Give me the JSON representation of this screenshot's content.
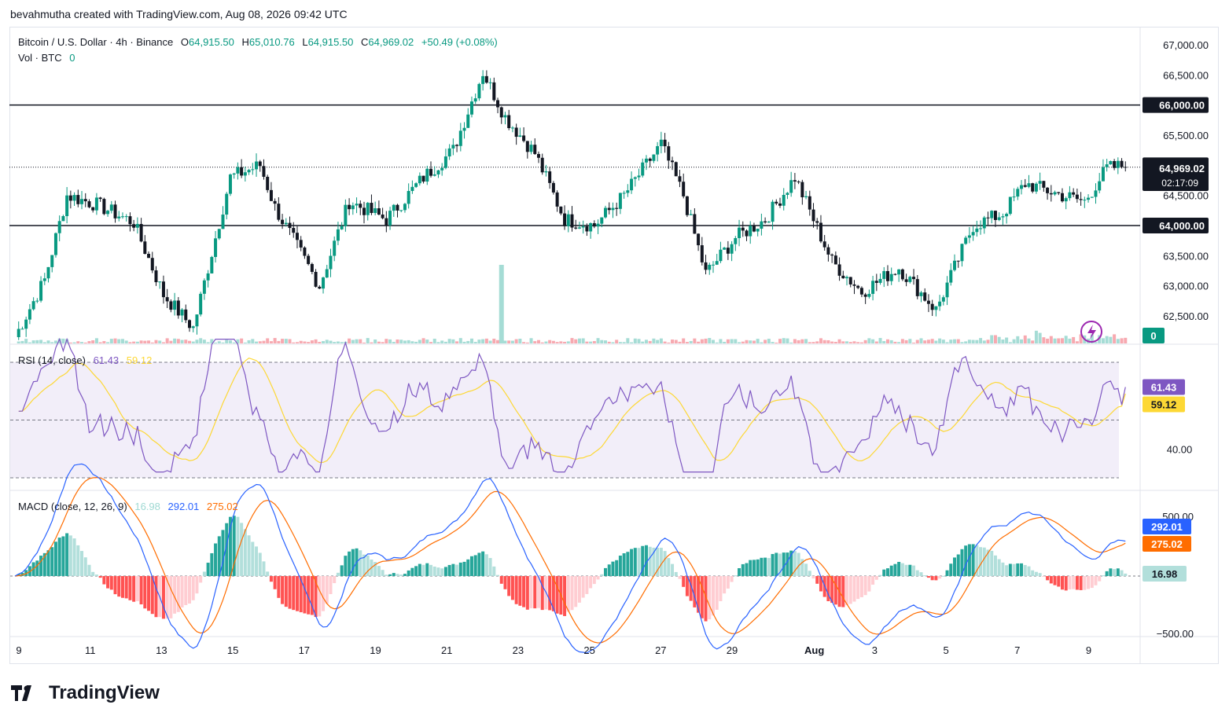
{
  "header": {
    "credit": "bevahmutha created with TradingView.com, Aug 08, 2026 09:42 UTC"
  },
  "legend": {
    "symbol": "Bitcoin / U.S. Dollar · 4h · Binance",
    "o_label": "O",
    "o": "64,915.50",
    "h_label": "H",
    "h": "65,010.76",
    "l_label": "L",
    "l": "64,915.50",
    "c_label": "C",
    "c": "64,969.02",
    "change": "+50.49 (+0.08%)",
    "vol_label": "Vol · BTC",
    "vol_value": "0"
  },
  "rsi_legend": {
    "name": "RSI (14, close)",
    "value": "61.43",
    "ma": "59.12"
  },
  "macd_legend": {
    "name": "MACD (close, 12, 26, 9)",
    "hist": "16.98",
    "macd": "292.01",
    "signal": "275.02"
  },
  "branding": {
    "name": "TradingView"
  },
  "colors": {
    "up": "#089981",
    "down": "#131722",
    "down_vol": "#f23645",
    "rsi": "#7e57c2",
    "rsi_ma": "#fdd835",
    "macd": "#2962ff",
    "signal": "#ff6d00",
    "hist_up": "#26a69a",
    "hist_down": "#ff5252"
  },
  "chart_data": [
    {
      "type": "candlestick",
      "title": "Bitcoin / U.S. Dollar · 4h · Binance",
      "x_ticks": [
        "9",
        "11",
        "13",
        "15",
        "17",
        "19",
        "21",
        "23",
        "25",
        "27",
        "29",
        "Aug",
        "3",
        "5",
        "7",
        "9"
      ],
      "y_ticks": [
        "67,000.00",
        "66,500.00",
        "66,000.00",
        "65,500.00",
        "65,000.00",
        "64,500.00",
        "64,000.00",
        "63,500.00",
        "63,000.00",
        "62,500.00"
      ],
      "ylim": [
        62100,
        67100
      ],
      "horizontal_lines": [
        66000,
        64000
      ],
      "current_price": 64969.02,
      "current_price_label": "64,969.02",
      "countdown": "02:17:09",
      "volume_label": "0",
      "key_points": [
        {
          "t": 0,
          "close": 62150
        },
        {
          "t": 8,
          "close": 63100
        },
        {
          "t": 14,
          "close": 64500
        },
        {
          "t": 22,
          "close": 64350
        },
        {
          "t": 32,
          "close": 64050
        },
        {
          "t": 40,
          "close": 62850
        },
        {
          "t": 48,
          "close": 62300
        },
        {
          "t": 58,
          "close": 64800
        },
        {
          "t": 66,
          "close": 65000
        },
        {
          "t": 70,
          "close": 64300
        },
        {
          "t": 82,
          "close": 63000
        },
        {
          "t": 90,
          "close": 64400
        },
        {
          "t": 100,
          "close": 64100
        },
        {
          "t": 110,
          "close": 64800
        },
        {
          "t": 118,
          "close": 65250
        },
        {
          "t": 126,
          "close": 66550
        },
        {
          "t": 132,
          "close": 65800
        },
        {
          "t": 140,
          "close": 65200
        },
        {
          "t": 148,
          "close": 64100
        },
        {
          "t": 156,
          "close": 64000
        },
        {
          "t": 164,
          "close": 64500
        },
        {
          "t": 174,
          "close": 65350
        },
        {
          "t": 180,
          "close": 64500
        },
        {
          "t": 186,
          "close": 63200
        },
        {
          "t": 194,
          "close": 63800
        },
        {
          "t": 202,
          "close": 64100
        },
        {
          "t": 210,
          "close": 64800
        },
        {
          "t": 220,
          "close": 63400
        },
        {
          "t": 228,
          "close": 62900
        },
        {
          "t": 238,
          "close": 63300
        },
        {
          "t": 248,
          "close": 62600
        },
        {
          "t": 258,
          "close": 64000
        },
        {
          "t": 266,
          "close": 64200
        },
        {
          "t": 272,
          "close": 64700
        },
        {
          "t": 282,
          "close": 64500
        },
        {
          "t": 288,
          "close": 64400
        },
        {
          "t": 294,
          "close": 64950
        }
      ]
    },
    {
      "type": "line",
      "title": "RSI (14, close)",
      "y_ticks": [
        "40.00"
      ],
      "ylim": [
        30,
        80
      ],
      "bands": [
        70,
        50,
        30
      ],
      "series": [
        {
          "name": "RSI",
          "current": 61.43
        },
        {
          "name": "MA",
          "current": 59.12
        }
      ]
    },
    {
      "type": "line",
      "title": "MACD (close, 12, 26, 9)",
      "y_ticks": [
        "500.00",
        "−500.00"
      ],
      "ylim": [
        -520,
        520
      ],
      "series": [
        {
          "name": "MACD",
          "current": 292.01
        },
        {
          "name": "Signal",
          "current": 275.02
        },
        {
          "name": "Histogram",
          "current": 16.98
        }
      ]
    }
  ]
}
